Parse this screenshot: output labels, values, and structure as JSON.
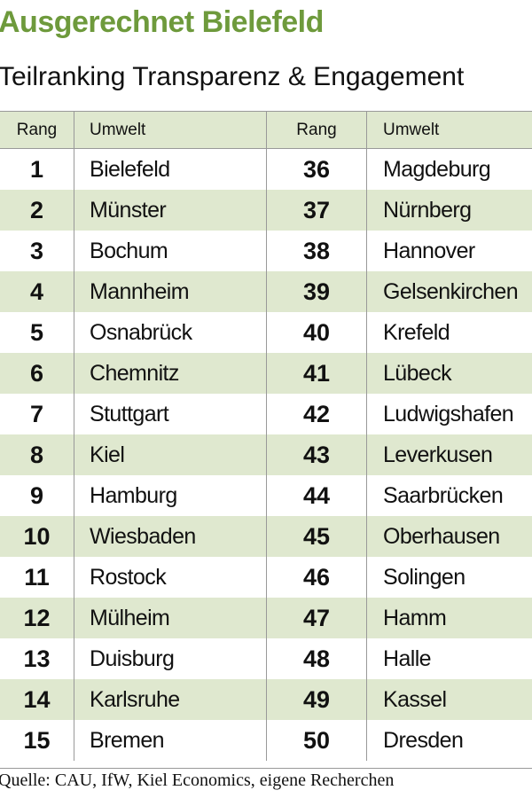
{
  "header": {
    "title": "Ausgerechnet Bielefeld",
    "subtitle": "Teilranking Transparenz & Engagement"
  },
  "table": {
    "columns": [
      "Rang",
      "Umwelt",
      "Rang",
      "Umwelt"
    ],
    "rows": [
      [
        1,
        "Bielefeld",
        36,
        "Magdeburg"
      ],
      [
        2,
        "Münster",
        37,
        "Nürnberg"
      ],
      [
        3,
        "Bochum",
        38,
        "Hannover"
      ],
      [
        4,
        "Mannheim",
        39,
        "Gelsenkirchen"
      ],
      [
        5,
        "Osnabrück",
        40,
        "Krefeld"
      ],
      [
        6,
        "Chemnitz",
        41,
        "Lübeck"
      ],
      [
        7,
        "Stuttgart",
        42,
        "Ludwigshafen"
      ],
      [
        8,
        "Kiel",
        43,
        "Leverkusen"
      ],
      [
        9,
        "Hamburg",
        44,
        "Saarbrücken"
      ],
      [
        10,
        "Wiesbaden",
        45,
        "Oberhausen"
      ],
      [
        11,
        "Rostock",
        46,
        "Solingen"
      ],
      [
        12,
        "Mülheim",
        47,
        "Hamm"
      ],
      [
        13,
        "Duisburg",
        48,
        "Halle"
      ],
      [
        14,
        "Karlsruhe",
        49,
        "Kassel"
      ],
      [
        15,
        "Bremen",
        50,
        "Dresden"
      ]
    ]
  },
  "footer": {
    "source": "Quelle: CAU, IfW, Kiel Economics, eigene Recherchen"
  }
}
